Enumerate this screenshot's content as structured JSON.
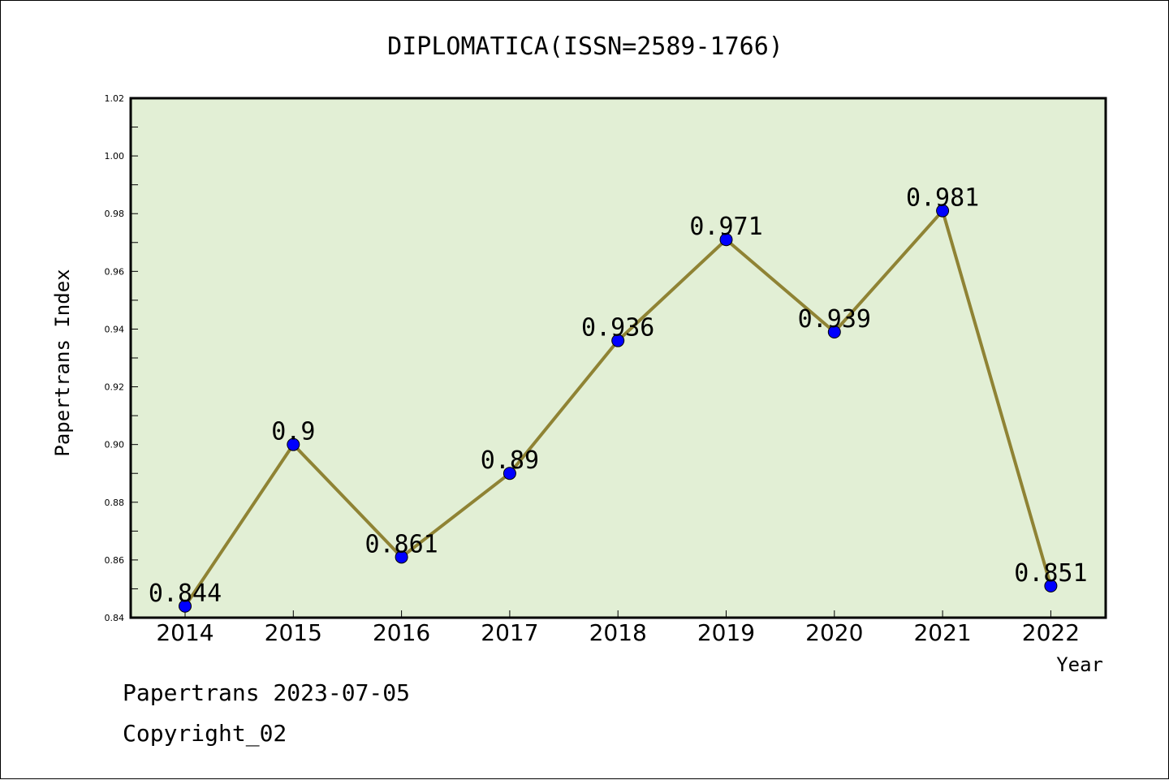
{
  "chart_data": {
    "type": "line",
    "title": "DIPLOMATICA(ISSN=2589-1766)",
    "xlabel": "Year",
    "ylabel": "Papertrans Index",
    "categories": [
      "2014",
      "2015",
      "2016",
      "2017",
      "2018",
      "2019",
      "2020",
      "2021",
      "2022"
    ],
    "values": [
      0.844,
      0.9,
      0.861,
      0.89,
      0.936,
      0.971,
      0.939,
      0.981,
      0.851
    ],
    "data_labels": [
      "0.844",
      "0.9",
      "0.861",
      "0.89",
      "0.936",
      "0.971",
      "0.939",
      "0.981",
      "0.851"
    ],
    "ylim": [
      0.84,
      1.02
    ],
    "yticks": [
      "0.84",
      "0.86",
      "0.88",
      "0.90",
      "0.92",
      "0.94",
      "0.96",
      "0.98",
      "1.00",
      "1.02"
    ],
    "grid": false,
    "colors": {
      "plot_background": "#e2efd5",
      "line": "#8f8334",
      "marker": "#0000ff"
    }
  },
  "footer": {
    "line1": "Papertrans 2023-07-05",
    "line2": "Copyright_02"
  }
}
